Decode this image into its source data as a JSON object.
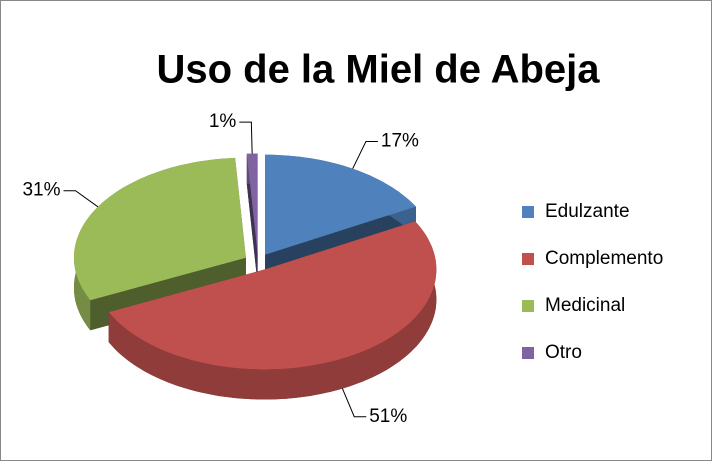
{
  "chart_data": {
    "type": "pie",
    "title": "Uso de la Miel de Abeja",
    "categories": [
      "Edulzante",
      "Complemento",
      "Medicinal",
      "Otro"
    ],
    "values": [
      17,
      51,
      31,
      1
    ],
    "value_labels": [
      "17%",
      "51%",
      "31%",
      "1%"
    ],
    "colors": [
      "#4f81bd",
      "#c0504d",
      "#9bbb59",
      "#8064a2"
    ],
    "legend": "right"
  }
}
